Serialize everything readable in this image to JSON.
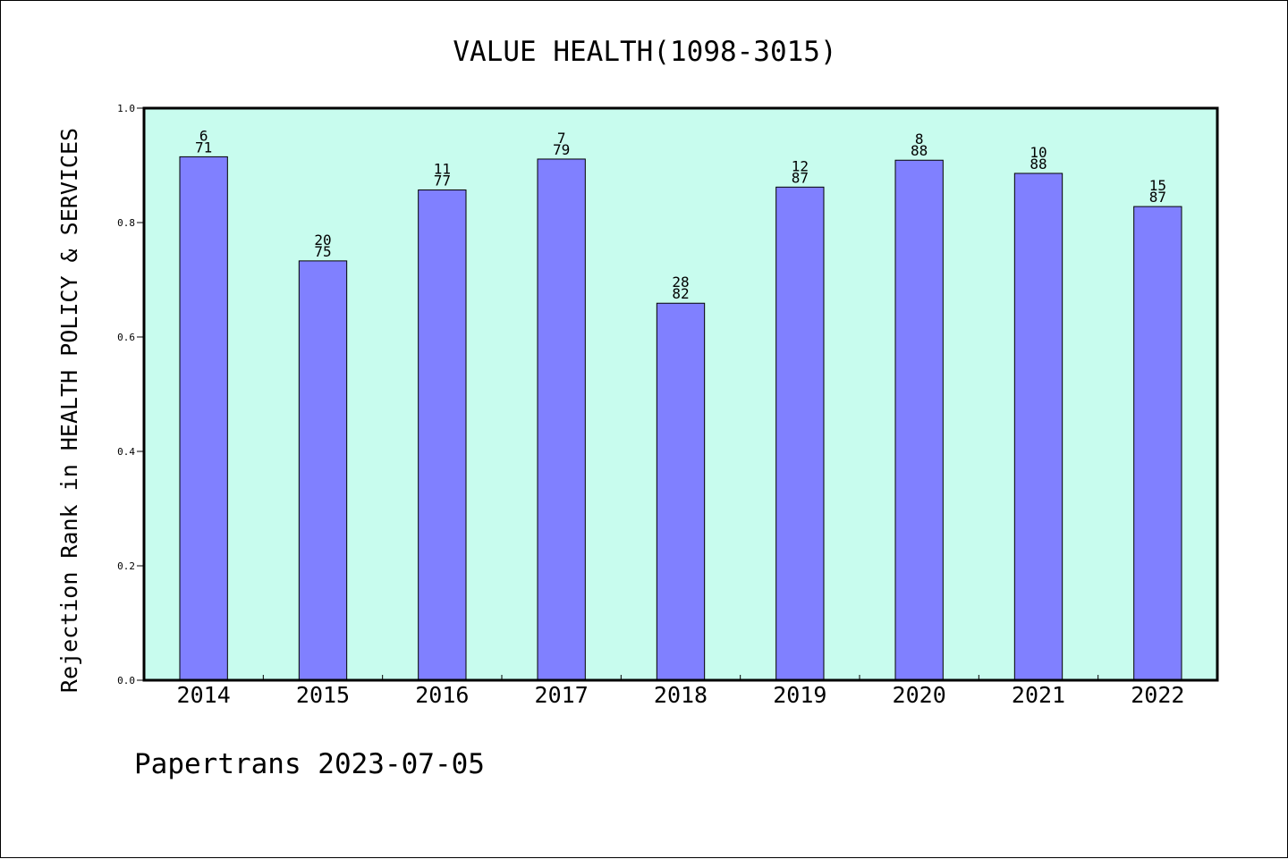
{
  "chart_data": {
    "type": "bar",
    "title": "VALUE HEALTH(1098-3015)",
    "ylabel": "Rejection Rank in HEALTH POLICY & SERVICES",
    "xlabel": "",
    "categories": [
      "2014",
      "2015",
      "2016",
      "2017",
      "2018",
      "2019",
      "2020",
      "2021",
      "2022"
    ],
    "values": [
      0.915,
      0.733,
      0.857,
      0.911,
      0.659,
      0.862,
      0.909,
      0.886,
      0.828
    ],
    "label_top": [
      "6",
      "20",
      "11",
      "7",
      "28",
      "12",
      "8",
      "10",
      "15"
    ],
    "label_bottom": [
      "71",
      "75",
      "77",
      "79",
      "82",
      "87",
      "88",
      "88",
      "87"
    ],
    "ylim": [
      0,
      1
    ],
    "yticks": [
      "0.0",
      "0.2",
      "0.4",
      "0.6",
      "0.8",
      "1.0"
    ],
    "grid": false,
    "colors": {
      "bar": "#8080ff",
      "plot_background": "#c8fcee"
    }
  },
  "footer": {
    "credit": "Papertrans 2023-07-05"
  }
}
